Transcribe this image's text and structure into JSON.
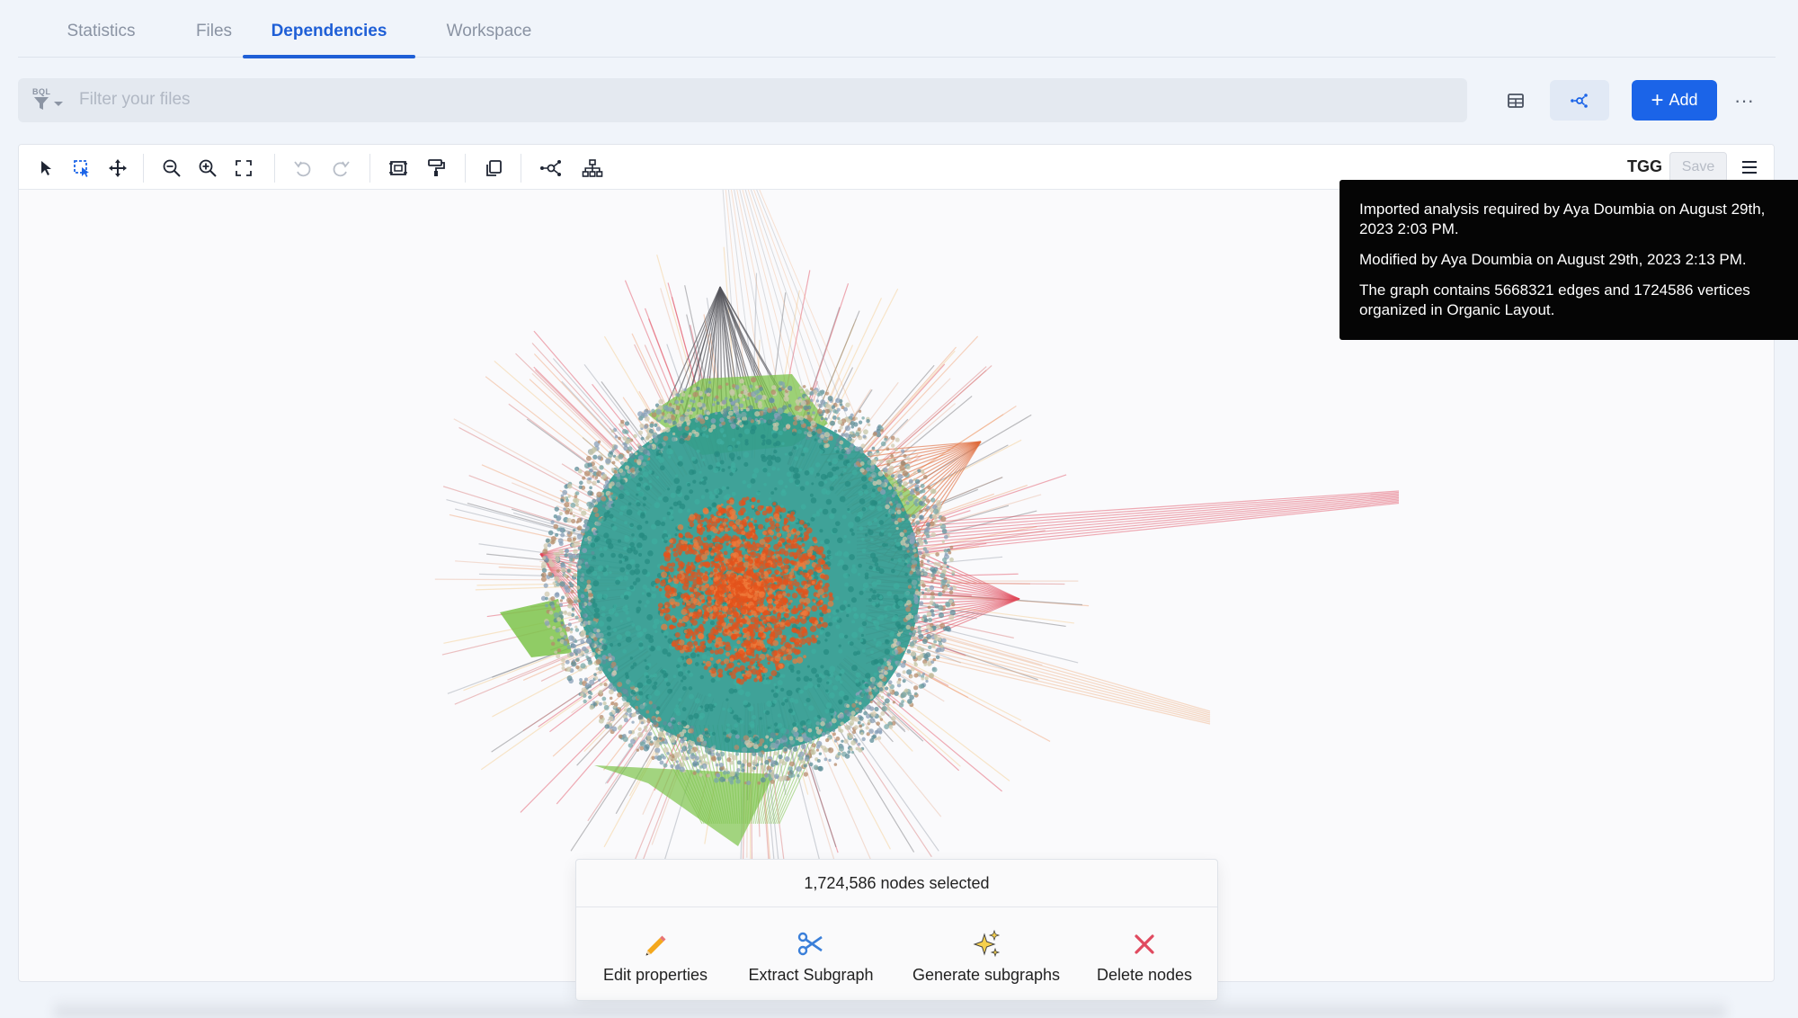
{
  "tabs": [
    {
      "label": "Statistics",
      "active": false
    },
    {
      "label": "Files",
      "active": false
    },
    {
      "label": "Dependencies",
      "active": true
    },
    {
      "label": "Workspace",
      "active": false
    }
  ],
  "filter": {
    "bql_label": "BQL",
    "placeholder": "Filter your files"
  },
  "header_actions": {
    "table_view_icon": "table-icon",
    "graph_view_icon": "graph-network-icon",
    "add_label": "Add",
    "more_icon": "ellipsis-icon"
  },
  "toolbar": {
    "tools": [
      "pointer-icon",
      "lasso-select-icon",
      "pan-icon",
      "zoom-out-icon",
      "zoom-in-icon",
      "fit-screen-icon",
      "undo-icon",
      "redo-icon",
      "frame-select-icon",
      "format-paint-icon",
      "copy-icon",
      "organic-layout-icon",
      "hierarchy-layout-icon"
    ],
    "graph_name": "TGG",
    "save_label": "Save",
    "menu_icon": "hamburger-icon"
  },
  "tooltip": {
    "line1": "Imported analysis required by Aya Doumbia on August 29th, 2023 2:03 PM.",
    "line2": "Modified by Aya Doumbia on August 29th, 2023 2:13 PM.",
    "line3": "The graph contains 5668321 edges and 1724586 vertices organized in Organic Layout."
  },
  "selection": {
    "summary": "1,724,586 nodes selected",
    "actions": [
      {
        "label": "Edit properties",
        "icon": "pencil-icon"
      },
      {
        "label": "Extract Subgraph",
        "icon": "scissors-icon"
      },
      {
        "label": "Generate subgraphs",
        "icon": "sparkles-icon"
      },
      {
        "label": "Delete nodes",
        "icon": "close-icon"
      }
    ]
  },
  "colors": {
    "accent": "#1b64e8",
    "teal_nodes": "#2f9a8f",
    "orange_core": "#e4521b",
    "green_cluster": "#7cc34a",
    "red_edges": "#e0485a"
  }
}
